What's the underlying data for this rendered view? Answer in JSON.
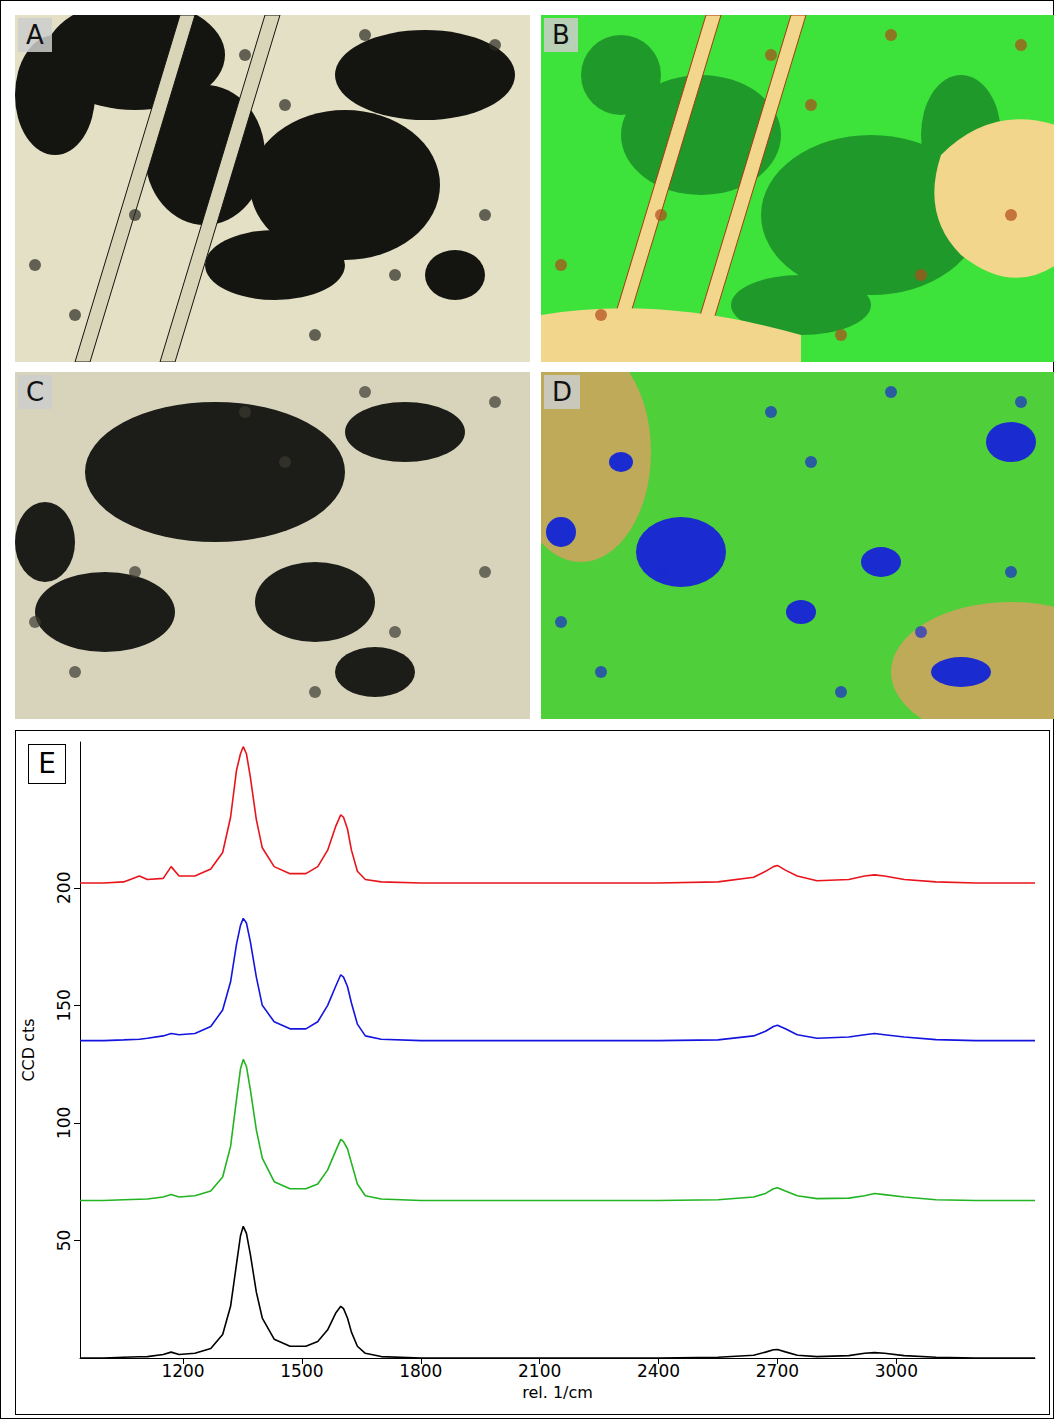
{
  "panel_labels": [
    "A",
    "B",
    "C",
    "D"
  ],
  "chart_data": {
    "type": "line",
    "panel_label": "E",
    "x_label": "rel. 1/cm",
    "y_label": "CCD cts",
    "xlim": [
      940,
      3350
    ],
    "xticks": [
      1200,
      1500,
      1800,
      2100,
      2400,
      2700,
      3000
    ],
    "ylim": [
      0,
      262
    ],
    "yticks": [
      50,
      100,
      150,
      200
    ],
    "grid": false,
    "x": [
      940,
      1000,
      1050,
      1090,
      1110,
      1150,
      1170,
      1190,
      1230,
      1270,
      1300,
      1320,
      1335,
      1345,
      1352,
      1360,
      1370,
      1385,
      1400,
      1430,
      1470,
      1510,
      1540,
      1565,
      1585,
      1598,
      1605,
      1615,
      1625,
      1640,
      1660,
      1700,
      1800,
      2000,
      2200,
      2400,
      2550,
      2640,
      2670,
      2690,
      2700,
      2720,
      2750,
      2800,
      2880,
      2920,
      2945,
      2970,
      3020,
      3100,
      3200,
      3350
    ],
    "series": [
      {
        "color": "#e8141c",
        "values": [
          202,
          202,
          202.5,
          205,
          203.5,
          204,
          209,
          205,
          205,
          208,
          215,
          230,
          250,
          257,
          260,
          257,
          247,
          229,
          217,
          209,
          206,
          206,
          209,
          216,
          226,
          231,
          230,
          225,
          216,
          207,
          203.5,
          202.5,
          202,
          202,
          202,
          202,
          202.5,
          204.5,
          207,
          209,
          209.5,
          207.5,
          205,
          203,
          203.5,
          205,
          205.5,
          205,
          203.5,
          202.5,
          202,
          202
        ]
      },
      {
        "color": "#1414e0",
        "values": [
          135,
          135,
          135.3,
          135.6,
          136,
          137,
          138,
          137.5,
          138,
          141,
          148,
          160,
          176,
          184,
          187,
          185,
          177,
          162,
          150,
          143,
          140,
          140,
          143,
          150,
          158,
          163,
          162,
          158,
          151,
          142,
          137,
          135.6,
          135,
          135,
          135,
          135,
          135.3,
          137,
          139,
          141,
          141.5,
          140,
          137.5,
          136,
          136.5,
          137.5,
          138,
          137.5,
          136.5,
          135.4,
          135,
          135
        ]
      },
      {
        "color": "#22b422",
        "values": [
          67,
          67,
          67.3,
          67.5,
          67.6,
          68.5,
          69.5,
          68.5,
          69,
          71,
          77,
          90,
          110,
          123,
          127,
          124,
          114,
          97,
          85,
          75,
          72,
          72,
          74,
          80,
          88,
          93,
          92,
          89,
          83,
          74,
          69,
          67.6,
          67,
          67,
          67,
          67,
          67.3,
          68.5,
          70,
          72,
          72.4,
          71,
          69,
          67.8,
          68,
          69,
          70,
          69.5,
          68.5,
          67.3,
          67,
          67
        ]
      },
      {
        "color": "#000000",
        "values": [
          0,
          0,
          0.3,
          0.5,
          0.6,
          1.5,
          2.5,
          1.5,
          2,
          4,
          10,
          22,
          40,
          52,
          56,
          53,
          44,
          28,
          17,
          8,
          5,
          5,
          7,
          12,
          19,
          22,
          21,
          17,
          11,
          5,
          2,
          0.6,
          0,
          0,
          0,
          0,
          0.3,
          1.2,
          2.5,
          3.5,
          3.6,
          2.6,
          1.2,
          0.6,
          1,
          2,
          2.3,
          2,
          1,
          0.3,
          0,
          0
        ]
      }
    ]
  }
}
